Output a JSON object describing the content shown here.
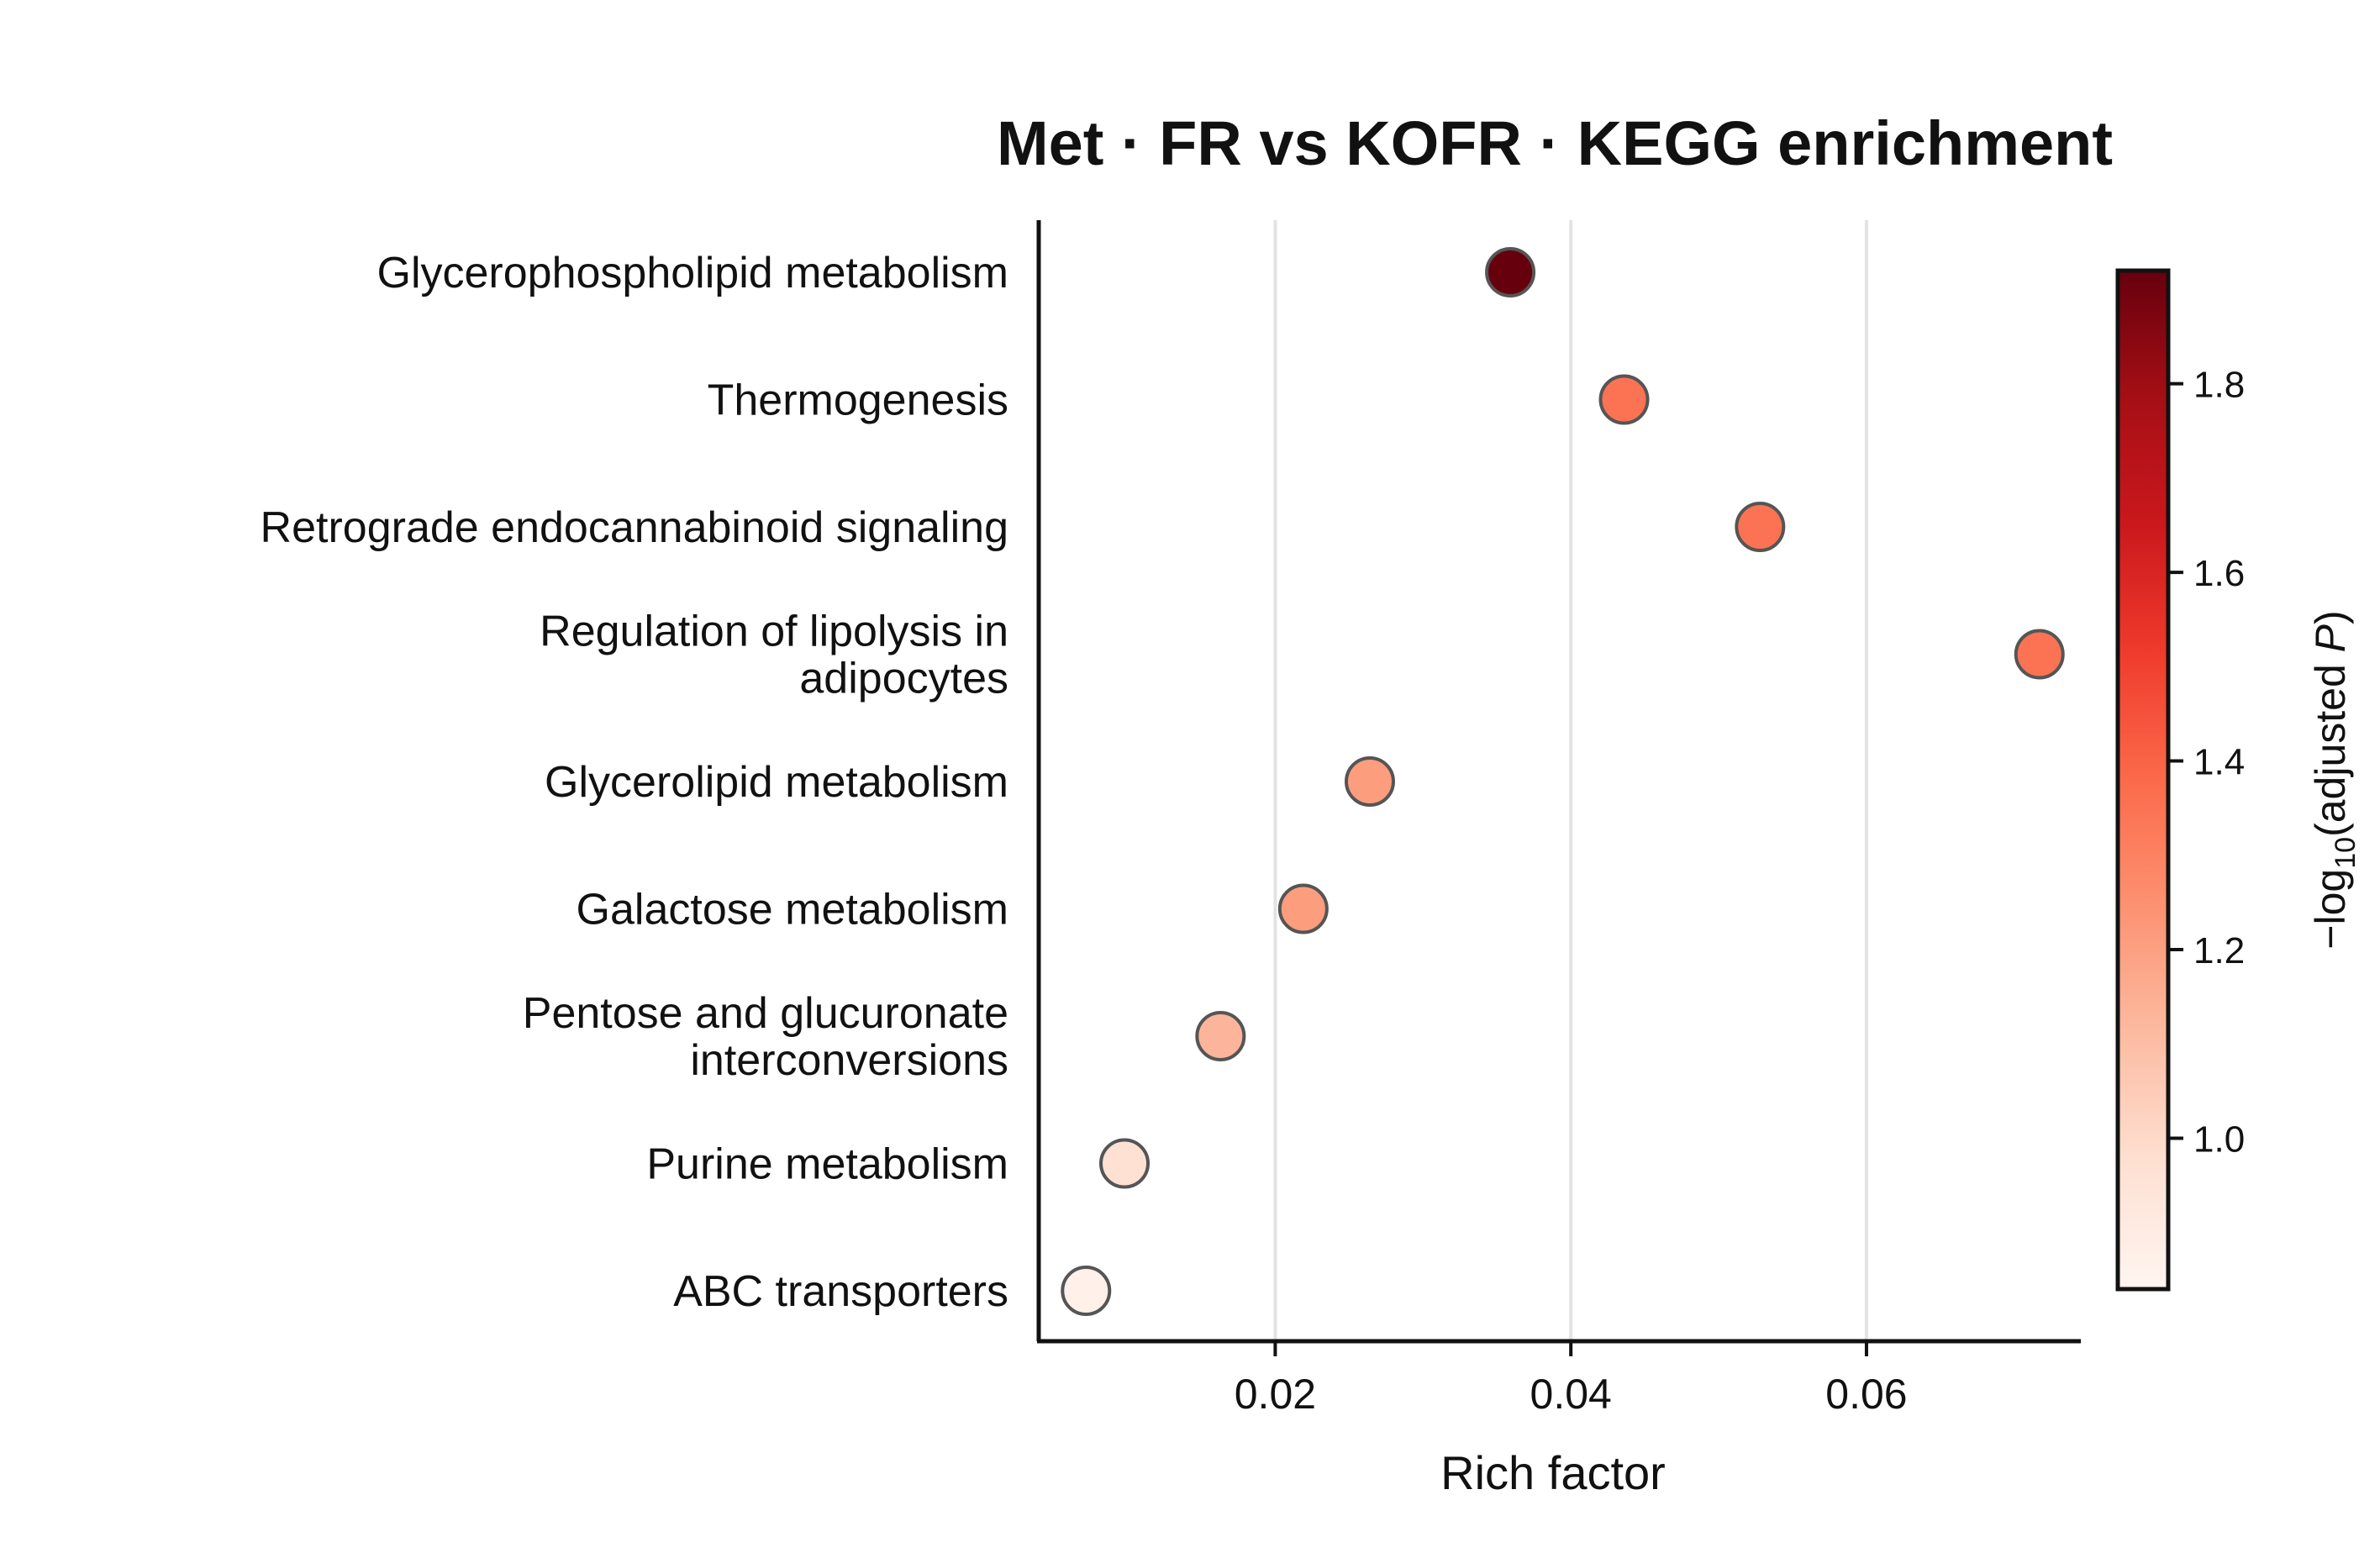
{
  "chart_data": {
    "type": "scatter",
    "title": "Met · FR vs KOFR · KEGG enrichment",
    "xlabel": "Rich factor",
    "xlim": [
      0.004,
      0.0745
    ],
    "xticks": [
      0.02,
      0.04,
      0.06
    ],
    "xtick_labels": [
      "0.02",
      "0.04",
      "0.06"
    ],
    "grid": "vertical",
    "colormap": "Reds",
    "colorbar": {
      "label_prefix": "−log",
      "label_sub": "10",
      "label_mid": "(adjusted ",
      "label_italic": "P",
      "label_suffix": ")",
      "range": [
        0.84,
        1.92
      ],
      "ticks": [
        1.0,
        1.2,
        1.4,
        1.6,
        1.8
      ],
      "tick_labels": [
        "1.0",
        "1.2",
        "1.4",
        "1.6",
        "1.8"
      ]
    },
    "points": [
      {
        "label": [
          "Glycerophospholipid metabolism"
        ],
        "x": 0.0359,
        "c": 1.92
      },
      {
        "label": [
          "Thermogenesis"
        ],
        "x": 0.0436,
        "c": 1.35
      },
      {
        "label": [
          "Retrograde endocannabinoid signaling"
        ],
        "x": 0.0528,
        "c": 1.35
      },
      {
        "label": [
          "Regulation of lipolysis in",
          "adipocytes"
        ],
        "x": 0.0717,
        "c": 1.35
      },
      {
        "label": [
          "Glycerolipid metabolism"
        ],
        "x": 0.0264,
        "c": 1.21
      },
      {
        "label": [
          "Galactose metabolism"
        ],
        "x": 0.0219,
        "c": 1.21
      },
      {
        "label": [
          "Pentose and glucuronate",
          "interconversions"
        ],
        "x": 0.0163,
        "c": 1.13
      },
      {
        "label": [
          "Purine metabolism"
        ],
        "x": 0.0098,
        "c": 0.97
      },
      {
        "label": [
          "ABC transporters"
        ],
        "x": 0.0072,
        "c": 0.87
      }
    ]
  }
}
